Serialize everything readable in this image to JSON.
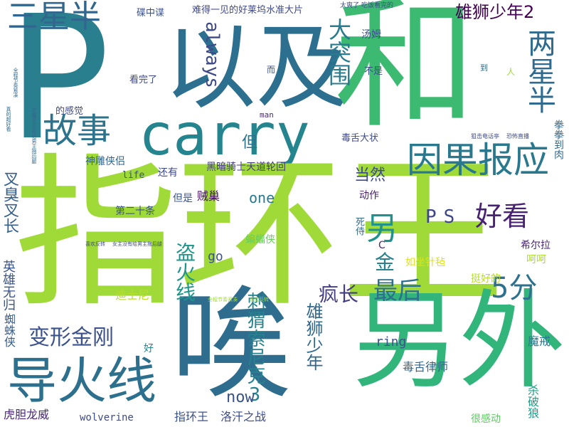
{
  "words": [
    {
      "id": "w0",
      "text": "P",
      "color": "#2a7f8e"
    },
    {
      "id": "w1",
      "text": "以及",
      "color": "#2d6f8e"
    },
    {
      "id": "w2",
      "text": "和",
      "color": "#3dba72"
    },
    {
      "id": "w3",
      "text": "carry",
      "color": "#25858e"
    },
    {
      "id": "w4",
      "text": "指环王",
      "color": "#a0da39"
    },
    {
      "id": "w5",
      "text": "唉",
      "color": "#2e6d8e"
    },
    {
      "id": "w6",
      "text": "另外",
      "color": "#31b57b"
    },
    {
      "id": "w7",
      "text": "导火线",
      "color": "#2d708e"
    },
    {
      "id": "w8",
      "text": "三星半",
      "color": "#31678e"
    },
    {
      "id": "w9",
      "text": "故事",
      "color": "#2c738e"
    },
    {
      "id": "w10",
      "text": "因果报应",
      "color": "#2a788e"
    },
    {
      "id": "w11",
      "text": "两星半",
      "color": "#2f6b8e"
    },
    {
      "id": "w12",
      "text": "雄狮少年2",
      "color": "#440154"
    },
    {
      "id": "w13",
      "text": "大突围",
      "color": "#287c8e"
    },
    {
      "id": "w14",
      "text": "always",
      "color": "#3e4989"
    },
    {
      "id": "w15",
      "text": "好看",
      "color": "#482173"
    },
    {
      "id": "w16",
      "text": "另",
      "color": "#21918c"
    },
    {
      "id": "w17",
      "text": "PS",
      "color": "#3f4788"
    },
    {
      "id": "w18",
      "text": "5分",
      "color": "#2c728e"
    },
    {
      "id": "w19",
      "text": "最后",
      "color": "#2d708e"
    },
    {
      "id": "w20",
      "text": "金",
      "color": "#26828e"
    },
    {
      "id": "w21",
      "text": "变形金刚",
      "color": "#3b528b"
    },
    {
      "id": "w22",
      "text": "盗火线",
      "color": "#1f968b"
    },
    {
      "id": "w23",
      "text": "刺猬索尼克3",
      "color": "#26828e"
    },
    {
      "id": "w24",
      "text": "雄狮少年",
      "color": "#31688e"
    },
    {
      "id": "w25",
      "text": "疯长",
      "color": "#433e85"
    },
    {
      "id": "w26",
      "text": "叉臭叉长",
      "color": "#355f8d"
    },
    {
      "id": "w27",
      "text": "英雄无归",
      "color": "#3a548c"
    },
    {
      "id": "w28",
      "text": "蜘蛛侠",
      "color": "#355e8d"
    },
    {
      "id": "w29",
      "text": "虎胆龙威",
      "color": "#482878"
    },
    {
      "id": "w30",
      "text": "wolverine",
      "color": "#3e4a89"
    },
    {
      "id": "w31",
      "text": "指环王",
      "color": "#3b528b"
    },
    {
      "id": "w32",
      "text": "洛汗之战",
      "color": "#3e4c8a"
    },
    {
      "id": "w33",
      "text": "now",
      "color": "#3a538b"
    },
    {
      "id": "w34",
      "text": "ring",
      "color": "#3b528b"
    },
    {
      "id": "w35",
      "text": "毒舌律师",
      "color": "#32658e"
    },
    {
      "id": "w36",
      "text": "杀破狼",
      "color": "#1f9e89"
    },
    {
      "id": "w37",
      "text": "很感动",
      "color": "#5ec962"
    },
    {
      "id": "w38",
      "text": "魔戒",
      "color": "#2a788e"
    },
    {
      "id": "w39",
      "text": "好",
      "color": "#25858e"
    },
    {
      "id": "w40",
      "text": "迪士尼",
      "color": "#b8de29"
    },
    {
      "id": "w41",
      "text": "如坐针毡",
      "color": "#dde318"
    },
    {
      "id": "w42",
      "text": "挺好的",
      "color": "#b5de2b"
    },
    {
      "id": "w43",
      "text": "呵呵",
      "color": "#a8db34"
    },
    {
      "id": "w44",
      "text": "希尔拉",
      "color": "#482475"
    },
    {
      "id": "w45",
      "text": "死侍",
      "color": "#31688e"
    },
    {
      "id": "w46",
      "text": "C",
      "color": "#472d7b"
    },
    {
      "id": "w47",
      "text": "动作",
      "color": "#482173"
    },
    {
      "id": "w48",
      "text": "蝙蝠侠",
      "color": "#67cc5c"
    },
    {
      "id": "w49",
      "text": "第二十条",
      "color": "#3b528b"
    },
    {
      "id": "w50",
      "text": "但是",
      "color": "#3a548c"
    },
    {
      "id": "w51",
      "text": "贼巢",
      "color": "#471063"
    },
    {
      "id": "w52",
      "text": "life",
      "color": "#3b528b"
    },
    {
      "id": "w53",
      "text": "神雕侠侣",
      "color": "#32648e"
    },
    {
      "id": "w54",
      "text": "还有",
      "color": "#3e4989"
    },
    {
      "id": "w55",
      "text": "黑暗骑士天道轮回",
      "color": "#443a83"
    },
    {
      "id": "w56",
      "text": "one",
      "color": "#2a788e"
    },
    {
      "id": "w57",
      "text": "go",
      "color": "#3b528b"
    },
    {
      "id": "w58",
      "text": "当然",
      "color": "#3e4a89"
    },
    {
      "id": "w59",
      "text": "但",
      "color": "#2c728e"
    },
    {
      "id": "w60",
      "text": "毒舌大状",
      "color": "#3e4989"
    },
    {
      "id": "w61",
      "text": "man",
      "color": "#472c7a"
    },
    {
      "id": "w62",
      "text": "的感觉",
      "color": "#3e4989"
    },
    {
      "id": "w63",
      "text": "看完了",
      "color": "#3e4989"
    },
    {
      "id": "w64",
      "text": "而",
      "color": "#3b528b"
    },
    {
      "id": "w65",
      "text": "不是",
      "color": "#3e4989"
    },
    {
      "id": "w66",
      "text": "汤姆",
      "color": "#3b528b"
    },
    {
      "id": "w67",
      "text": "碟中谍",
      "color": "#3b528b"
    },
    {
      "id": "w68",
      "text": "难得一见的好莱坞水准大片",
      "color": "#3e4989"
    },
    {
      "id": "w69",
      "text": "太爽了",
      "color": "#3e4989"
    },
    {
      "id": "w70",
      "text": "吃饭看完的",
      "color": "#3e4989"
    },
    {
      "id": "w71",
      "text": "到",
      "color": "#31688e"
    },
    {
      "id": "w72",
      "text": "人",
      "color": "#a0da39"
    },
    {
      "id": "w73",
      "text": "拳拳到肉",
      "color": "#31688e"
    },
    {
      "id": "w74",
      "text": "狙击电话亭",
      "color": "#3e4989"
    },
    {
      "id": "w75",
      "text": "恐怖直播",
      "color": "#3e4989"
    },
    {
      "id": "w76",
      "text": "喜欢反转",
      "color": "#3e4989"
    },
    {
      "id": "w77",
      "text": "女主没有给男主拖后腿",
      "color": "#3e4989"
    },
    {
      "id": "w78",
      "text": "全程节奏紧凑",
      "color": "#a0da39"
    },
    {
      "id": "w79",
      "text": "喜欢反转",
      "color": "#a0da39"
    },
    {
      "id": "w80",
      "text": "全程节奏紧凑",
      "color": "#31688e"
    },
    {
      "id": "w81",
      "text": "女主没有给男主拖后腿",
      "color": "#31688e"
    },
    {
      "id": "w82",
      "text": "真的超好看",
      "color": "#31688e"
    },
    {
      "id": "w83",
      "text": "太爽了",
      "color": "#31688e"
    }
  ]
}
